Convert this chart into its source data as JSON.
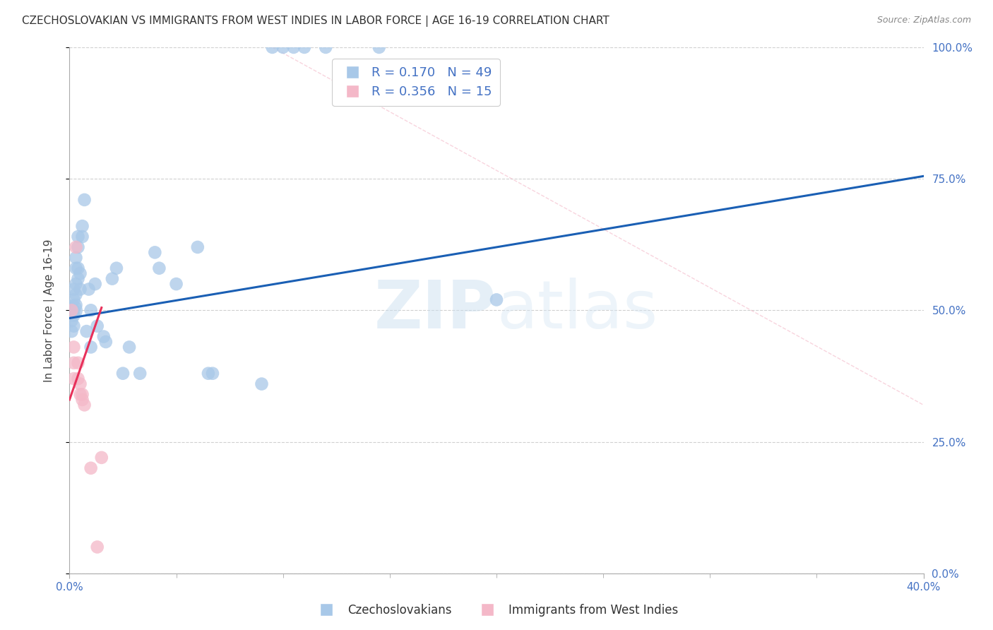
{
  "title": "CZECHOSLOVAKIAN VS IMMIGRANTS FROM WEST INDIES IN LABOR FORCE | AGE 16-19 CORRELATION CHART",
  "source": "Source: ZipAtlas.com",
  "ylabel": "In Labor Force | Age 16-19",
  "xlim": [
    0.0,
    0.4
  ],
  "ylim": [
    0.0,
    1.0
  ],
  "yticks": [
    0.0,
    0.25,
    0.5,
    0.75,
    1.0
  ],
  "xticks": [
    0.0,
    0.4
  ],
  "legend_entries": [
    "Czechoslovakians",
    "Immigrants from West Indies"
  ],
  "blue_R": 0.17,
  "blue_N": 49,
  "pink_R": 0.356,
  "pink_N": 15,
  "blue_color": "#a8c8e8",
  "pink_color": "#f4b8c8",
  "blue_line_color": "#1a5fb4",
  "pink_line_color": "#e8305a",
  "blue_scatter": [
    [
      0.001,
      0.5
    ],
    [
      0.001,
      0.48
    ],
    [
      0.001,
      0.46
    ],
    [
      0.002,
      0.54
    ],
    [
      0.002,
      0.52
    ],
    [
      0.002,
      0.5
    ],
    [
      0.002,
      0.49
    ],
    [
      0.002,
      0.47
    ],
    [
      0.003,
      0.6
    ],
    [
      0.003,
      0.58
    ],
    [
      0.003,
      0.55
    ],
    [
      0.003,
      0.53
    ],
    [
      0.003,
      0.51
    ],
    [
      0.004,
      0.64
    ],
    [
      0.004,
      0.62
    ],
    [
      0.004,
      0.58
    ],
    [
      0.004,
      0.56
    ],
    [
      0.005,
      0.57
    ],
    [
      0.005,
      0.54
    ],
    [
      0.006,
      0.66
    ],
    [
      0.006,
      0.64
    ],
    [
      0.007,
      0.71
    ],
    [
      0.008,
      0.46
    ],
    [
      0.009,
      0.54
    ],
    [
      0.01,
      0.5
    ],
    [
      0.01,
      0.43
    ],
    [
      0.012,
      0.55
    ],
    [
      0.013,
      0.47
    ],
    [
      0.016,
      0.45
    ],
    [
      0.017,
      0.44
    ],
    [
      0.02,
      0.56
    ],
    [
      0.022,
      0.58
    ],
    [
      0.025,
      0.38
    ],
    [
      0.028,
      0.43
    ],
    [
      0.033,
      0.38
    ],
    [
      0.04,
      0.61
    ],
    [
      0.042,
      0.58
    ],
    [
      0.05,
      0.55
    ],
    [
      0.06,
      0.62
    ],
    [
      0.065,
      0.38
    ],
    [
      0.067,
      0.38
    ],
    [
      0.09,
      0.36
    ],
    [
      0.095,
      1.0
    ],
    [
      0.1,
      1.0
    ],
    [
      0.105,
      1.0
    ],
    [
      0.11,
      1.0
    ],
    [
      0.12,
      1.0
    ],
    [
      0.145,
      1.0
    ],
    [
      0.2,
      0.52
    ]
  ],
  "pink_scatter": [
    [
      0.001,
      0.5
    ],
    [
      0.002,
      0.43
    ],
    [
      0.002,
      0.4
    ],
    [
      0.002,
      0.37
    ],
    [
      0.003,
      0.62
    ],
    [
      0.004,
      0.4
    ],
    [
      0.004,
      0.37
    ],
    [
      0.005,
      0.36
    ],
    [
      0.005,
      0.34
    ],
    [
      0.006,
      0.34
    ],
    [
      0.006,
      0.33
    ],
    [
      0.007,
      0.32
    ],
    [
      0.01,
      0.2
    ],
    [
      0.013,
      0.05
    ],
    [
      0.015,
      0.22
    ]
  ],
  "blue_line_x": [
    0.0,
    0.4
  ],
  "blue_line_y": [
    0.485,
    0.755
  ],
  "pink_line_x": [
    0.0,
    0.015
  ],
  "pink_line_y": [
    0.33,
    0.505
  ],
  "dashed_line_x": [
    0.095,
    0.4
  ],
  "dashed_line_y": [
    1.0,
    0.32
  ],
  "watermark_zip": "ZIP",
  "watermark_atlas": "atlas",
  "background_color": "#ffffff",
  "grid_color": "#d0d0d0",
  "title_fontsize": 11,
  "axis_label_fontsize": 11,
  "tick_label_color": "#4472c4",
  "tick_label_fontsize": 11,
  "legend_fontsize": 13
}
